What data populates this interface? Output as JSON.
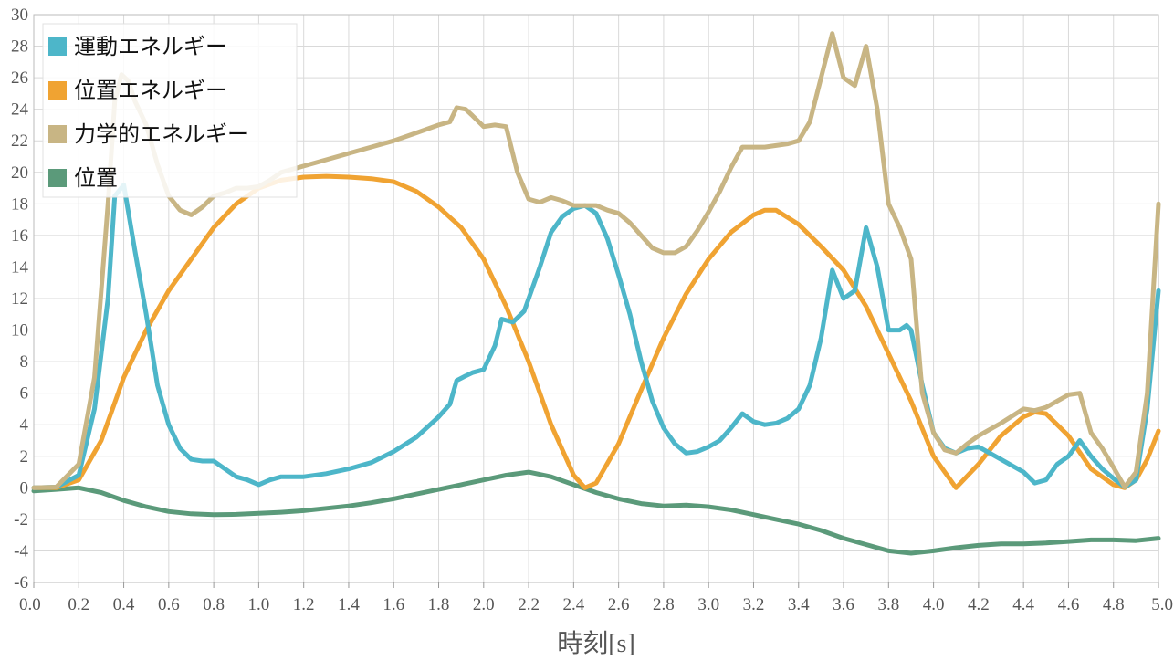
{
  "chart_data": {
    "type": "line",
    "xlabel": "時刻[s]",
    "ylabel": "",
    "xlim": [
      0,
      5
    ],
    "ylim": [
      -6,
      30
    ],
    "grid": true,
    "legend_position": "top-left",
    "x_ticks": [
      "0.0",
      "0.2",
      "0.4",
      "0.6",
      "0.8",
      "1.0",
      "1.2",
      "1.4",
      "1.6",
      "1.8",
      "2.0",
      "2.2",
      "2.4",
      "2.6",
      "2.8",
      "3.0",
      "3.2",
      "3.4",
      "3.6",
      "3.8",
      "4.0",
      "4.2",
      "4.4",
      "4.6",
      "4.8",
      "5.0"
    ],
    "y_ticks": [
      "-6",
      "-4",
      "-2",
      "0",
      "2",
      "4",
      "6",
      "8",
      "10",
      "12",
      "14",
      "16",
      "18",
      "20",
      "22",
      "24",
      "26",
      "28",
      "30"
    ],
    "series": [
      {
        "name": "運動エネルギー",
        "color": "#4db6c9",
        "points": [
          [
            0,
            0
          ],
          [
            0.1,
            0.05
          ],
          [
            0.2,
            0.8
          ],
          [
            0.27,
            5
          ],
          [
            0.33,
            12
          ],
          [
            0.36,
            18.5
          ],
          [
            0.4,
            19.2
          ],
          [
            0.45,
            15
          ],
          [
            0.5,
            11
          ],
          [
            0.55,
            6.5
          ],
          [
            0.6,
            4
          ],
          [
            0.65,
            2.5
          ],
          [
            0.7,
            1.8
          ],
          [
            0.75,
            1.7
          ],
          [
            0.8,
            1.7
          ],
          [
            0.85,
            1.2
          ],
          [
            0.9,
            0.7
          ],
          [
            0.95,
            0.5
          ],
          [
            1.0,
            0.2
          ],
          [
            1.05,
            0.5
          ],
          [
            1.1,
            0.7
          ],
          [
            1.2,
            0.7
          ],
          [
            1.3,
            0.9
          ],
          [
            1.4,
            1.2
          ],
          [
            1.5,
            1.6
          ],
          [
            1.6,
            2.3
          ],
          [
            1.7,
            3.2
          ],
          [
            1.8,
            4.5
          ],
          [
            1.85,
            5.3
          ],
          [
            1.88,
            6.8
          ],
          [
            1.92,
            7.1
          ],
          [
            1.95,
            7.3
          ],
          [
            2.0,
            7.5
          ],
          [
            2.05,
            9
          ],
          [
            2.08,
            10.7
          ],
          [
            2.13,
            10.5
          ],
          [
            2.18,
            11.2
          ],
          [
            2.25,
            14
          ],
          [
            2.3,
            16.2
          ],
          [
            2.35,
            17.2
          ],
          [
            2.4,
            17.7
          ],
          [
            2.45,
            17.9
          ],
          [
            2.5,
            17.4
          ],
          [
            2.55,
            15.8
          ],
          [
            2.6,
            13.5
          ],
          [
            2.65,
            11
          ],
          [
            2.7,
            8
          ],
          [
            2.75,
            5.5
          ],
          [
            2.8,
            3.8
          ],
          [
            2.85,
            2.8
          ],
          [
            2.9,
            2.2
          ],
          [
            2.95,
            2.3
          ],
          [
            3.0,
            2.6
          ],
          [
            3.05,
            3
          ],
          [
            3.1,
            3.8
          ],
          [
            3.15,
            4.7
          ],
          [
            3.2,
            4.2
          ],
          [
            3.25,
            4.0
          ],
          [
            3.3,
            4.1
          ],
          [
            3.35,
            4.4
          ],
          [
            3.4,
            5
          ],
          [
            3.45,
            6.5
          ],
          [
            3.5,
            9.5
          ],
          [
            3.55,
            13.8
          ],
          [
            3.6,
            12
          ],
          [
            3.65,
            12.5
          ],
          [
            3.7,
            16.5
          ],
          [
            3.75,
            14
          ],
          [
            3.8,
            10
          ],
          [
            3.85,
            10
          ],
          [
            3.88,
            10.3
          ],
          [
            3.9,
            10
          ],
          [
            3.95,
            6.5
          ],
          [
            4.0,
            3.5
          ],
          [
            4.05,
            2.5
          ],
          [
            4.1,
            2.2
          ],
          [
            4.15,
            2.5
          ],
          [
            4.2,
            2.6
          ],
          [
            4.3,
            1.8
          ],
          [
            4.4,
            1.0
          ],
          [
            4.45,
            0.3
          ],
          [
            4.5,
            0.5
          ],
          [
            4.55,
            1.5
          ],
          [
            4.6,
            2
          ],
          [
            4.65,
            3
          ],
          [
            4.7,
            2
          ],
          [
            4.75,
            1.2
          ],
          [
            4.8,
            0.6
          ],
          [
            4.85,
            0.05
          ],
          [
            4.9,
            0.5
          ],
          [
            4.95,
            5
          ],
          [
            5.0,
            12.5
          ]
        ]
      },
      {
        "name": "位置エネルギー",
        "color": "#f0a332",
        "points": [
          [
            0,
            0
          ],
          [
            0.1,
            0
          ],
          [
            0.2,
            0.5
          ],
          [
            0.3,
            3
          ],
          [
            0.4,
            7
          ],
          [
            0.5,
            10
          ],
          [
            0.6,
            12.5
          ],
          [
            0.7,
            14.5
          ],
          [
            0.8,
            16.5
          ],
          [
            0.9,
            18
          ],
          [
            1.0,
            19
          ],
          [
            1.1,
            19.5
          ],
          [
            1.2,
            19.7
          ],
          [
            1.3,
            19.75
          ],
          [
            1.4,
            19.7
          ],
          [
            1.5,
            19.6
          ],
          [
            1.6,
            19.4
          ],
          [
            1.7,
            18.8
          ],
          [
            1.8,
            17.8
          ],
          [
            1.9,
            16.5
          ],
          [
            2.0,
            14.5
          ],
          [
            2.1,
            11.5
          ],
          [
            2.2,
            8
          ],
          [
            2.3,
            4
          ],
          [
            2.4,
            0.8
          ],
          [
            2.45,
            0
          ],
          [
            2.5,
            0.3
          ],
          [
            2.6,
            2.8
          ],
          [
            2.7,
            6.2
          ],
          [
            2.8,
            9.5
          ],
          [
            2.9,
            12.3
          ],
          [
            3.0,
            14.5
          ],
          [
            3.1,
            16.2
          ],
          [
            3.2,
            17.3
          ],
          [
            3.25,
            17.6
          ],
          [
            3.3,
            17.6
          ],
          [
            3.4,
            16.7
          ],
          [
            3.5,
            15.3
          ],
          [
            3.6,
            13.8
          ],
          [
            3.7,
            11.5
          ],
          [
            3.8,
            8.5
          ],
          [
            3.9,
            5.5
          ],
          [
            4.0,
            2
          ],
          [
            4.1,
            0
          ],
          [
            4.2,
            1.5
          ],
          [
            4.3,
            3.3
          ],
          [
            4.4,
            4.5
          ],
          [
            4.45,
            4.8
          ],
          [
            4.5,
            4.7
          ],
          [
            4.6,
            3.3
          ],
          [
            4.7,
            1.2
          ],
          [
            4.8,
            0.2
          ],
          [
            4.85,
            0
          ],
          [
            4.9,
            0.5
          ],
          [
            4.95,
            1.8
          ],
          [
            5.0,
            3.6
          ]
        ]
      },
      {
        "name": "力学的エネルギー",
        "color": "#c8b584",
        "points": [
          [
            0,
            0
          ],
          [
            0.1,
            0.05
          ],
          [
            0.2,
            1.5
          ],
          [
            0.27,
            7
          ],
          [
            0.33,
            18
          ],
          [
            0.36,
            24.5
          ],
          [
            0.39,
            26.2
          ],
          [
            0.42,
            25.8
          ],
          [
            0.45,
            24.5
          ],
          [
            0.5,
            23
          ],
          [
            0.55,
            20.5
          ],
          [
            0.6,
            18.5
          ],
          [
            0.65,
            17.6
          ],
          [
            0.7,
            17.3
          ],
          [
            0.75,
            17.8
          ],
          [
            0.8,
            18.5
          ],
          [
            0.85,
            18.7
          ],
          [
            0.9,
            19
          ],
          [
            0.95,
            19
          ],
          [
            1.0,
            19.1
          ],
          [
            1.05,
            19.5
          ],
          [
            1.1,
            20
          ],
          [
            1.2,
            20.4
          ],
          [
            1.3,
            20.8
          ],
          [
            1.4,
            21.2
          ],
          [
            1.5,
            21.6
          ],
          [
            1.6,
            22
          ],
          [
            1.7,
            22.5
          ],
          [
            1.8,
            23
          ],
          [
            1.85,
            23.2
          ],
          [
            1.88,
            24.1
          ],
          [
            1.92,
            24
          ],
          [
            1.95,
            23.6
          ],
          [
            2.0,
            22.9
          ],
          [
            2.05,
            23
          ],
          [
            2.1,
            22.9
          ],
          [
            2.15,
            20
          ],
          [
            2.2,
            18.3
          ],
          [
            2.25,
            18.1
          ],
          [
            2.3,
            18.4
          ],
          [
            2.35,
            18.2
          ],
          [
            2.4,
            17.9
          ],
          [
            2.45,
            17.9
          ],
          [
            2.5,
            17.9
          ],
          [
            2.55,
            17.6
          ],
          [
            2.6,
            17.4
          ],
          [
            2.65,
            16.8
          ],
          [
            2.7,
            16
          ],
          [
            2.75,
            15.2
          ],
          [
            2.8,
            14.9
          ],
          [
            2.85,
            14.9
          ],
          [
            2.9,
            15.3
          ],
          [
            2.95,
            16.3
          ],
          [
            3.0,
            17.5
          ],
          [
            3.05,
            18.8
          ],
          [
            3.1,
            20.3
          ],
          [
            3.15,
            21.6
          ],
          [
            3.2,
            21.6
          ],
          [
            3.25,
            21.6
          ],
          [
            3.3,
            21.7
          ],
          [
            3.35,
            21.8
          ],
          [
            3.4,
            22
          ],
          [
            3.45,
            23.2
          ],
          [
            3.5,
            26
          ],
          [
            3.55,
            28.8
          ],
          [
            3.6,
            26
          ],
          [
            3.65,
            25.5
          ],
          [
            3.7,
            28
          ],
          [
            3.75,
            24
          ],
          [
            3.8,
            18
          ],
          [
            3.85,
            16.5
          ],
          [
            3.9,
            14.5
          ],
          [
            3.95,
            6
          ],
          [
            4.0,
            3.5
          ],
          [
            4.05,
            2.4
          ],
          [
            4.1,
            2.2
          ],
          [
            4.15,
            2.8
          ],
          [
            4.2,
            3.3
          ],
          [
            4.3,
            4.1
          ],
          [
            4.4,
            5
          ],
          [
            4.45,
            4.9
          ],
          [
            4.5,
            5.1
          ],
          [
            4.55,
            5.5
          ],
          [
            4.6,
            5.9
          ],
          [
            4.65,
            6
          ],
          [
            4.7,
            3.5
          ],
          [
            4.75,
            2.5
          ],
          [
            4.8,
            1.3
          ],
          [
            4.85,
            0.05
          ],
          [
            4.9,
            1
          ],
          [
            4.95,
            6
          ],
          [
            5.0,
            18
          ]
        ]
      },
      {
        "name": "位置",
        "color": "#5b9a7a",
        "points": [
          [
            0,
            -0.2
          ],
          [
            0.1,
            -0.1
          ],
          [
            0.2,
            0
          ],
          [
            0.3,
            -0.3
          ],
          [
            0.4,
            -0.8
          ],
          [
            0.5,
            -1.2
          ],
          [
            0.6,
            -1.5
          ],
          [
            0.7,
            -1.65
          ],
          [
            0.8,
            -1.7
          ],
          [
            0.9,
            -1.68
          ],
          [
            1.0,
            -1.62
          ],
          [
            1.1,
            -1.55
          ],
          [
            1.2,
            -1.45
          ],
          [
            1.3,
            -1.3
          ],
          [
            1.4,
            -1.15
          ],
          [
            1.5,
            -0.95
          ],
          [
            1.6,
            -0.7
          ],
          [
            1.7,
            -0.4
          ],
          [
            1.8,
            -0.1
          ],
          [
            1.9,
            0.2
          ],
          [
            2.0,
            0.5
          ],
          [
            2.1,
            0.8
          ],
          [
            2.2,
            1.0
          ],
          [
            2.3,
            0.7
          ],
          [
            2.4,
            0.2
          ],
          [
            2.5,
            -0.3
          ],
          [
            2.6,
            -0.7
          ],
          [
            2.7,
            -1.0
          ],
          [
            2.8,
            -1.15
          ],
          [
            2.9,
            -1.1
          ],
          [
            3.0,
            -1.2
          ],
          [
            3.1,
            -1.4
          ],
          [
            3.2,
            -1.7
          ],
          [
            3.3,
            -2.0
          ],
          [
            3.4,
            -2.3
          ],
          [
            3.5,
            -2.7
          ],
          [
            3.6,
            -3.2
          ],
          [
            3.7,
            -3.6
          ],
          [
            3.8,
            -4.0
          ],
          [
            3.9,
            -4.15
          ],
          [
            4.0,
            -4.0
          ],
          [
            4.1,
            -3.8
          ],
          [
            4.2,
            -3.65
          ],
          [
            4.3,
            -3.55
          ],
          [
            4.4,
            -3.55
          ],
          [
            4.5,
            -3.5
          ],
          [
            4.6,
            -3.4
          ],
          [
            4.7,
            -3.3
          ],
          [
            4.8,
            -3.3
          ],
          [
            4.9,
            -3.35
          ],
          [
            5.0,
            -3.2
          ]
        ]
      }
    ]
  }
}
